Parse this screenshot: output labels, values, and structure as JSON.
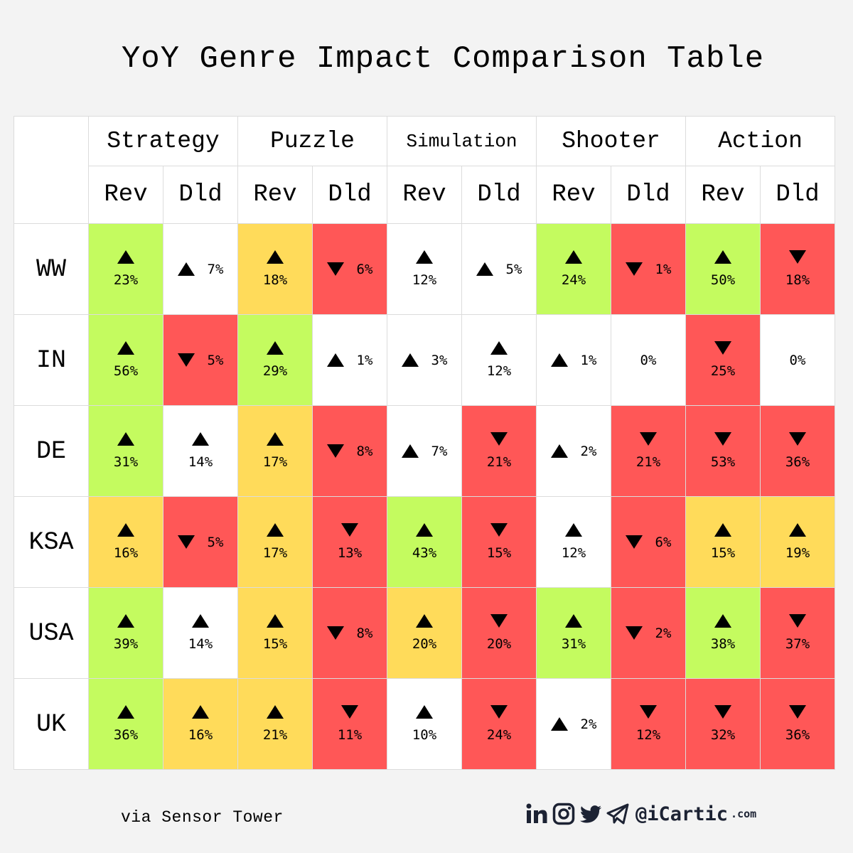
{
  "title": "YoY Genre Impact Comparison Table",
  "colors": {
    "strong_up": "#c4fb5f",
    "moderate_up": "#ffdb5a",
    "down": "#ff5757",
    "neutral": "#ffffff"
  },
  "chart_data": {
    "type": "table",
    "genres": [
      "Strategy",
      "Puzzle",
      "Simulation",
      "Shooter",
      "Action"
    ],
    "metrics": [
      "Rev",
      "Dld"
    ],
    "rows": [
      {
        "region": "WW",
        "cells": [
          {
            "dir": "up",
            "value": "23%",
            "color": "green"
          },
          {
            "dir": "up",
            "value": "7%",
            "color": "white"
          },
          {
            "dir": "up",
            "value": "18%",
            "color": "yellow"
          },
          {
            "dir": "down",
            "value": "6%",
            "color": "red"
          },
          {
            "dir": "up",
            "value": "12%",
            "color": "white"
          },
          {
            "dir": "up",
            "value": "5%",
            "color": "white"
          },
          {
            "dir": "up",
            "value": "24%",
            "color": "green"
          },
          {
            "dir": "down",
            "value": "1%",
            "color": "red"
          },
          {
            "dir": "up",
            "value": "50%",
            "color": "green"
          },
          {
            "dir": "down",
            "value": "18%",
            "color": "red"
          }
        ]
      },
      {
        "region": "IN",
        "cells": [
          {
            "dir": "up",
            "value": "56%",
            "color": "green"
          },
          {
            "dir": "down",
            "value": "5%",
            "color": "red"
          },
          {
            "dir": "up",
            "value": "29%",
            "color": "green"
          },
          {
            "dir": "up",
            "value": "1%",
            "color": "white"
          },
          {
            "dir": "up",
            "value": "3%",
            "color": "white"
          },
          {
            "dir": "up",
            "value": "12%",
            "color": "white"
          },
          {
            "dir": "up",
            "value": "1%",
            "color": "white"
          },
          {
            "dir": "none",
            "value": "0%",
            "color": "white"
          },
          {
            "dir": "down",
            "value": "25%",
            "color": "red"
          },
          {
            "dir": "none",
            "value": "0%",
            "color": "white"
          }
        ]
      },
      {
        "region": "DE",
        "cells": [
          {
            "dir": "up",
            "value": "31%",
            "color": "green"
          },
          {
            "dir": "up",
            "value": "14%",
            "color": "white"
          },
          {
            "dir": "up",
            "value": "17%",
            "color": "yellow"
          },
          {
            "dir": "down",
            "value": "8%",
            "color": "red"
          },
          {
            "dir": "up",
            "value": "7%",
            "color": "white"
          },
          {
            "dir": "down",
            "value": "21%",
            "color": "red"
          },
          {
            "dir": "up",
            "value": "2%",
            "color": "white"
          },
          {
            "dir": "down",
            "value": "21%",
            "color": "red"
          },
          {
            "dir": "down",
            "value": "53%",
            "color": "red"
          },
          {
            "dir": "down",
            "value": "36%",
            "color": "red"
          }
        ]
      },
      {
        "region": "KSA",
        "cells": [
          {
            "dir": "up",
            "value": "16%",
            "color": "yellow"
          },
          {
            "dir": "down",
            "value": "5%",
            "color": "red"
          },
          {
            "dir": "up",
            "value": "17%",
            "color": "yellow"
          },
          {
            "dir": "down",
            "value": "13%",
            "color": "red"
          },
          {
            "dir": "up",
            "value": "43%",
            "color": "green"
          },
          {
            "dir": "down",
            "value": "15%",
            "color": "red"
          },
          {
            "dir": "up",
            "value": "12%",
            "color": "white"
          },
          {
            "dir": "down",
            "value": "6%",
            "color": "red"
          },
          {
            "dir": "up",
            "value": "15%",
            "color": "yellow"
          },
          {
            "dir": "up",
            "value": "19%",
            "color": "yellow"
          }
        ]
      },
      {
        "region": "USA",
        "cells": [
          {
            "dir": "up",
            "value": "39%",
            "color": "green"
          },
          {
            "dir": "up",
            "value": "14%",
            "color": "white"
          },
          {
            "dir": "up",
            "value": "15%",
            "color": "yellow"
          },
          {
            "dir": "down",
            "value": "8%",
            "color": "red"
          },
          {
            "dir": "up",
            "value": "20%",
            "color": "yellow"
          },
          {
            "dir": "down",
            "value": "20%",
            "color": "red"
          },
          {
            "dir": "up",
            "value": "31%",
            "color": "green"
          },
          {
            "dir": "down",
            "value": "2%",
            "color": "red"
          },
          {
            "dir": "up",
            "value": "38%",
            "color": "green"
          },
          {
            "dir": "down",
            "value": "37%",
            "color": "red"
          }
        ]
      },
      {
        "region": "UK",
        "cells": [
          {
            "dir": "up",
            "value": "36%",
            "color": "green"
          },
          {
            "dir": "up",
            "value": "16%",
            "color": "yellow"
          },
          {
            "dir": "up",
            "value": "21%",
            "color": "yellow"
          },
          {
            "dir": "down",
            "value": "11%",
            "color": "red"
          },
          {
            "dir": "up",
            "value": "10%",
            "color": "white"
          },
          {
            "dir": "down",
            "value": "24%",
            "color": "red"
          },
          {
            "dir": "up",
            "value": "2%",
            "color": "white"
          },
          {
            "dir": "down",
            "value": "12%",
            "color": "red"
          },
          {
            "dir": "down",
            "value": "32%",
            "color": "red"
          },
          {
            "dir": "down",
            "value": "36%",
            "color": "red"
          }
        ]
      }
    ]
  },
  "footer": {
    "source": "via Sensor Tower",
    "handle": "@iCartic",
    "handle_tld": ".com",
    "social_icons": [
      "linkedin-icon",
      "instagram-icon",
      "twitter-icon",
      "telegram-icon"
    ]
  }
}
